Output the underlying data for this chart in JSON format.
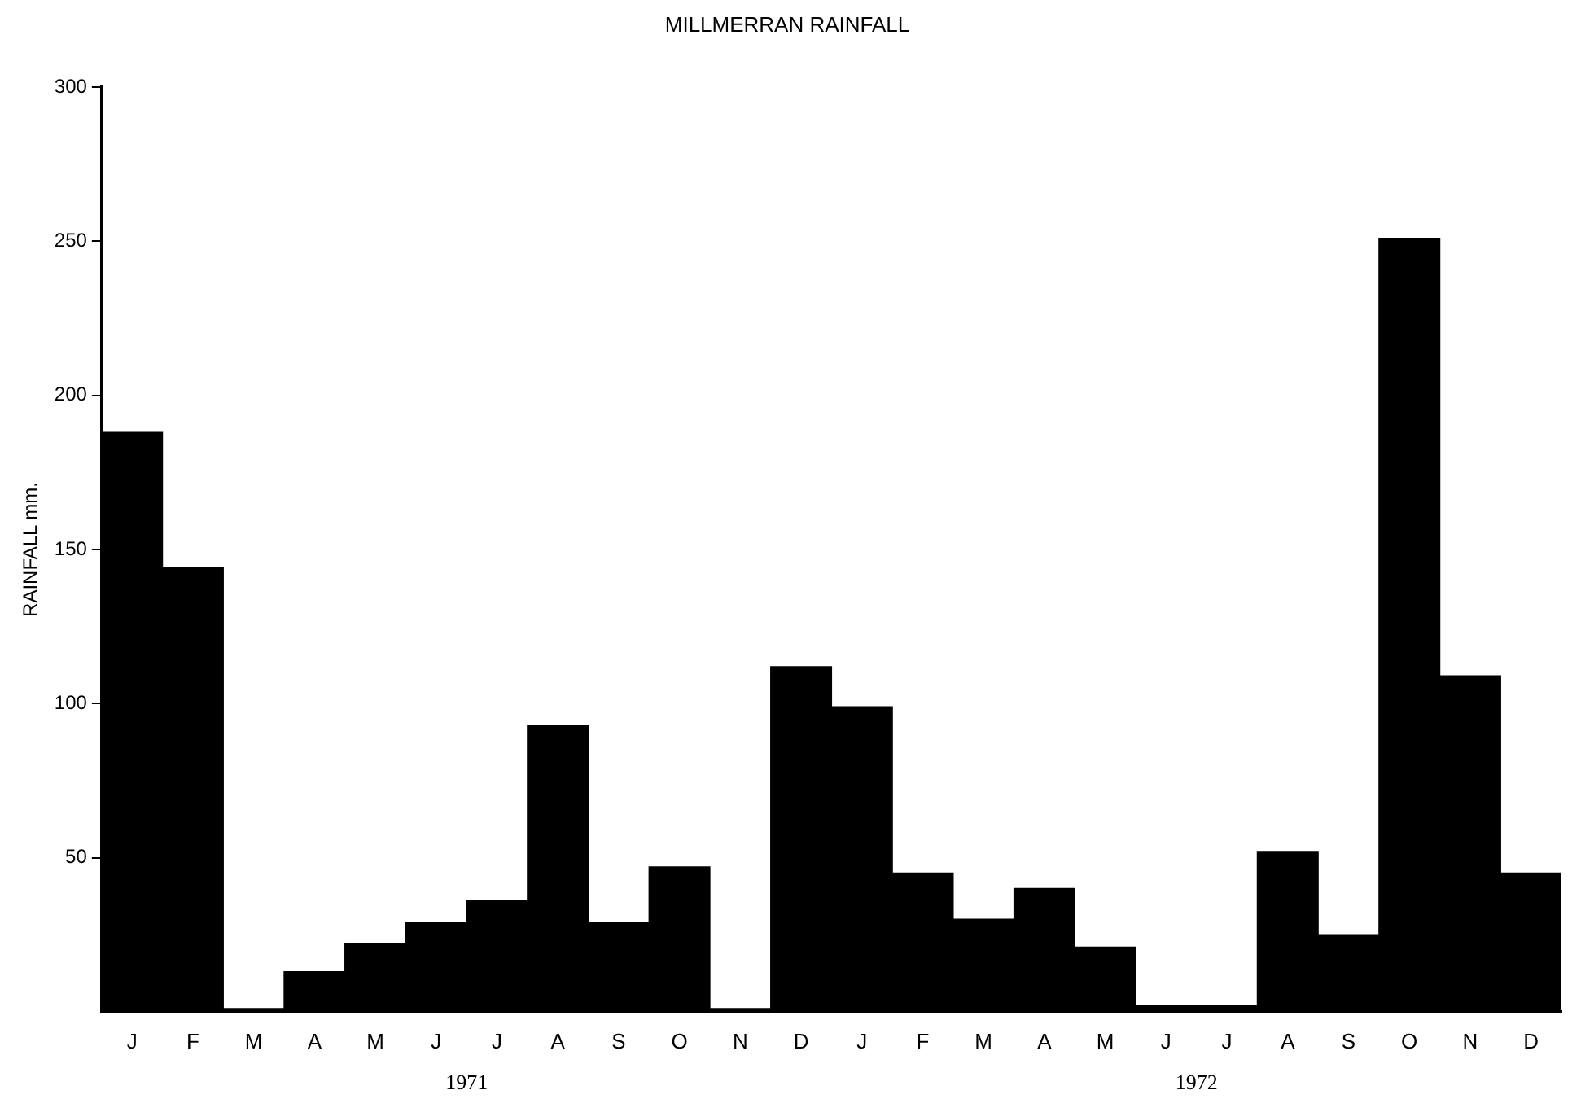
{
  "chart_data": {
    "type": "bar",
    "title": "MILLMERRAN RAINFALL",
    "ylabel": "RAINFALL mm.",
    "categories": [
      "J",
      "F",
      "M",
      "A",
      "M",
      "J",
      "J",
      "A",
      "S",
      "O",
      "N",
      "D",
      "J",
      "F",
      "M",
      "A",
      "M",
      "J",
      "J",
      "A",
      "S",
      "O",
      "N",
      "D"
    ],
    "values": [
      188,
      144,
      1,
      13,
      22,
      29,
      36,
      93,
      29,
      47,
      1,
      112,
      99,
      45,
      30,
      40,
      21,
      2,
      2,
      52,
      25,
      251,
      109,
      45
    ],
    "color": "#000000",
    "ylim": [
      0,
      300
    ],
    "yticks": [
      50,
      100,
      150,
      200,
      250,
      300
    ],
    "grid": false,
    "legend": false,
    "annotations": [
      "1971",
      "1972"
    ]
  }
}
